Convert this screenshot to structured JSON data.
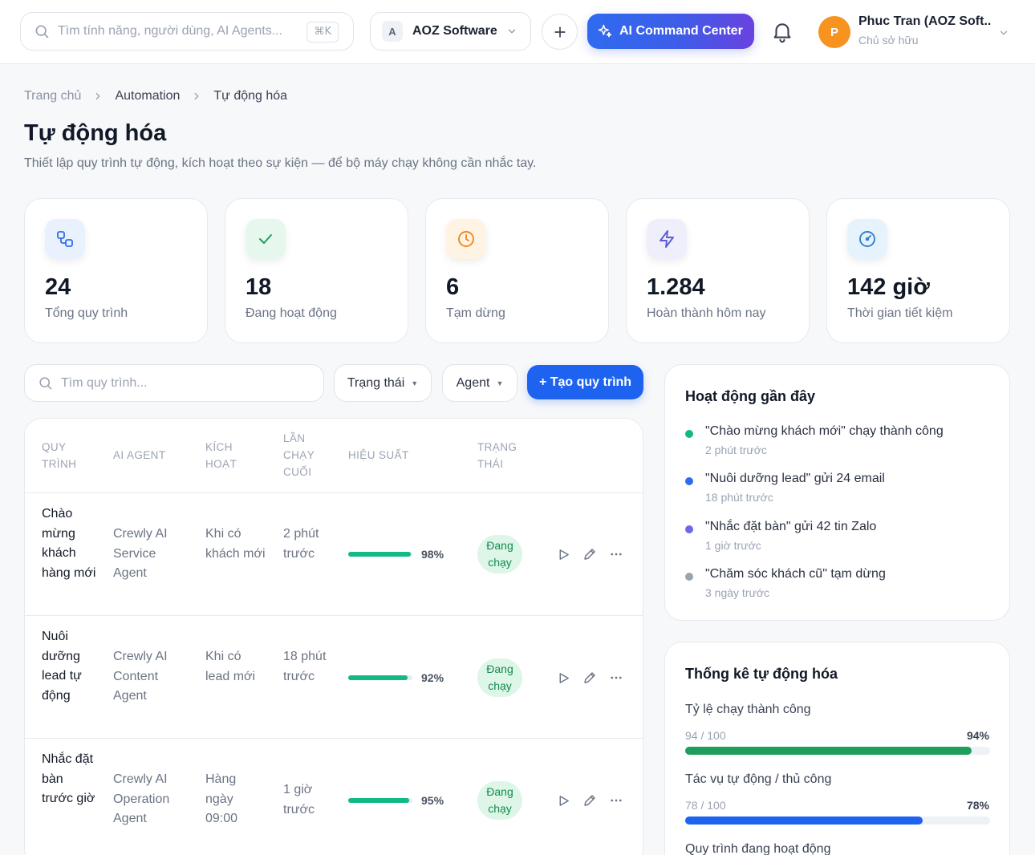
{
  "topbar": {
    "search_placeholder": "Tìm tính năng, người dùng, AI Agents...",
    "search_shortcut": "⌘K",
    "org_initial": "A",
    "org_name": "AOZ Software",
    "ai_button_label": "AI Command Center",
    "user_initial": "P",
    "user_name": "Phuc Tran (AOZ Soft...",
    "user_role": "Chủ sở hữu"
  },
  "breadcrumb": [
    "Trang chủ",
    "Automation",
    "Tự động hóa"
  ],
  "header": {
    "title": "Tự động hóa",
    "subtitle": "Thiết lập quy trình tự động, kích hoạt theo sự kiện — để bộ máy chạy không cần nhắc tay."
  },
  "stats": [
    {
      "value": "24",
      "label": "Tổng quy trình",
      "icon": "workflow-icon",
      "bg": "#e8f1fd",
      "color": "#2f6bf0"
    },
    {
      "value": "18",
      "label": "Đang hoạt động",
      "icon": "check-icon",
      "bg": "#e6f7ee",
      "color": "#1f9d5a"
    },
    {
      "value": "6",
      "label": "Tạm dừng",
      "icon": "clock-icon",
      "bg": "#fff3e3",
      "color": "#f0891e"
    },
    {
      "value": "1.284",
      "label": "Hoàn thành hôm nay",
      "icon": "lightning-icon",
      "bg": "#efeefb",
      "color": "#5b5bd6"
    },
    {
      "value": "142 giờ",
      "label": "Thời gian tiết kiệm",
      "icon": "gauge-icon",
      "bg": "#e6f3fc",
      "color": "#2f80d6"
    }
  ],
  "filters": {
    "search_placeholder": "Tìm quy trình...",
    "status_label": "Trạng thái",
    "agent_label": "Agent",
    "create_label": "+ Tạo quy trình"
  },
  "table": {
    "headers": {
      "name": "QUY TRÌNH",
      "agent": "AI AGENT",
      "trigger": "KÍCH HOẠT",
      "last_run": "LẦN CHẠY CUỐI",
      "performance": "HIỆU SUẤT",
      "status": "TRẠNG THÁI"
    },
    "rows": [
      {
        "name": "Chào mừng khách hàng mới",
        "agent": "Crewly AI Service Agent",
        "trigger": "Khi có khách mới",
        "last_run": "2 phút trước",
        "performance": 98,
        "performance_label": "98%",
        "status": "Đang chạy"
      },
      {
        "name": "Nuôi dưỡng lead tự động",
        "agent": "Crewly AI Content Agent",
        "trigger": "Khi có lead mới",
        "last_run": "18 phút trước",
        "performance": 92,
        "performance_label": "92%",
        "status": "Đang chạy"
      },
      {
        "name": "Nhắc đặt bàn trước giờ",
        "agent": "Crewly AI Operation Agent",
        "trigger": "Hàng ngày 09:00",
        "last_run": "1 giờ trước",
        "performance": 95,
        "performance_label": "95%",
        "status": "Đang chạy"
      }
    ]
  },
  "activity": {
    "title": "Hoạt động gần đây",
    "items": [
      {
        "text": "\"Chào mừng khách mới\" chạy thành công",
        "time": "2 phút trước",
        "color": "#12b886"
      },
      {
        "text": "\"Nuôi dưỡng lead\" gửi 24 email",
        "time": "18 phút trước",
        "color": "#2f6bf0"
      },
      {
        "text": "\"Nhắc đặt bàn\" gửi 42 tin Zalo",
        "time": "1 giờ trước",
        "color": "#6a6ae8"
      },
      {
        "text": "\"Chăm sóc khách cũ\" tạm dừng",
        "time": "3 ngày trước",
        "color": "#9aa3b2"
      }
    ]
  },
  "automation_stats": {
    "title": "Thống kê tự động hóa",
    "metrics": [
      {
        "label": "Tỷ lệ chạy thành công",
        "count": "94 / 100",
        "pct_label": "94%",
        "value": 94,
        "color": "#1f9d5a"
      },
      {
        "label": "Tác vụ tự động / thủ công",
        "count": "78 / 100",
        "pct_label": "78%",
        "value": 78,
        "color": "#1e63f0"
      },
      {
        "label": "Quy trình đang hoạt động"
      }
    ]
  }
}
